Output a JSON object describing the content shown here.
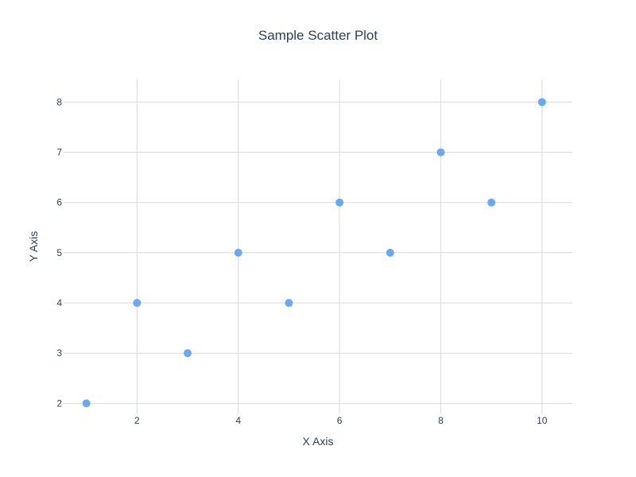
{
  "chart_data": {
    "type": "scatter",
    "title": "Sample Scatter Plot",
    "xlabel": "X Axis",
    "ylabel": "Y Axis",
    "x": [
      1,
      2,
      3,
      4,
      5,
      6,
      7,
      8,
      9,
      10
    ],
    "y": [
      2,
      4,
      3,
      5,
      4,
      6,
      5,
      7,
      6,
      8
    ],
    "xlim": [
      0.55,
      10.6
    ],
    "ylim": [
      1.8,
      8.45
    ],
    "xticks": [
      2,
      4,
      6,
      8,
      10
    ],
    "yticks": [
      2,
      3,
      4,
      5,
      6,
      7,
      8
    ],
    "grid": true,
    "legend": "none",
    "colors": {
      "marker": "#67a9f4",
      "grid": "#d9d9d9",
      "text": "#2a3f5f",
      "background": "#ffffff"
    }
  }
}
